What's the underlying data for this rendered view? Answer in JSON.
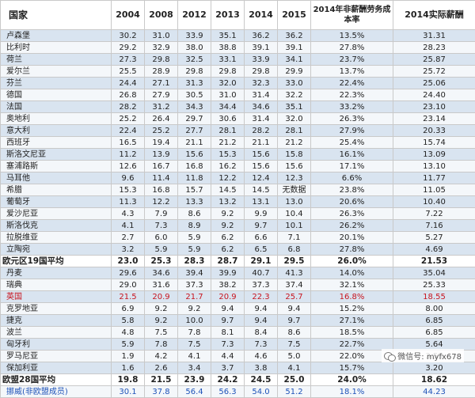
{
  "headers": {
    "country": "国家",
    "years": [
      "2004",
      "2008",
      "2012",
      "2013",
      "2014",
      "2015"
    ],
    "nonwage_cost_rate": "2014年非薪酬劳务成本率",
    "actual_wage": "2014实际薪酬"
  },
  "rows": [
    {
      "country": "卢森堡",
      "values": [
        "30.2",
        "31.0",
        "33.9",
        "35.1",
        "36.2",
        "36.2",
        "13.5%",
        "31.31"
      ]
    },
    {
      "country": "比利时",
      "values": [
        "29.2",
        "32.9",
        "38.0",
        "38.8",
        "39.1",
        "39.1",
        "27.8%",
        "28.23"
      ]
    },
    {
      "country": "荷兰",
      "values": [
        "27.3",
        "29.8",
        "32.5",
        "33.1",
        "33.9",
        "34.1",
        "23.7%",
        "25.87"
      ]
    },
    {
      "country": "爱尔兰",
      "values": [
        "25.5",
        "28.9",
        "29.8",
        "29.8",
        "29.8",
        "29.9",
        "13.7%",
        "25.72"
      ]
    },
    {
      "country": "芬兰",
      "values": [
        "24.4",
        "27.1",
        "31.3",
        "32.0",
        "32.3",
        "33.0",
        "22.4%",
        "25.06"
      ]
    },
    {
      "country": "德国",
      "values": [
        "26.8",
        "27.9",
        "30.5",
        "31.0",
        "31.4",
        "32.2",
        "22.3%",
        "24.40"
      ]
    },
    {
      "country": "法国",
      "values": [
        "28.2",
        "31.2",
        "34.3",
        "34.4",
        "34.6",
        "35.1",
        "33.2%",
        "23.10"
      ]
    },
    {
      "country": "奥地利",
      "values": [
        "25.2",
        "26.4",
        "29.7",
        "30.6",
        "31.4",
        "32.0",
        "26.3%",
        "23.14"
      ]
    },
    {
      "country": "意大利",
      "values": [
        "22.4",
        "25.2",
        "27.7",
        "28.1",
        "28.2",
        "28.1",
        "27.9%",
        "20.33"
      ]
    },
    {
      "country": "西班牙",
      "values": [
        "16.5",
        "19.4",
        "21.1",
        "21.2",
        "21.1",
        "21.2",
        "25.4%",
        "15.74"
      ]
    },
    {
      "country": "斯洛文尼亚",
      "values": [
        "11.2",
        "13.9",
        "15.6",
        "15.3",
        "15.6",
        "15.8",
        "16.1%",
        "13.09"
      ]
    },
    {
      "country": "塞浦路斯",
      "values": [
        "12.6",
        "16.7",
        "16.8",
        "16.2",
        "15.6",
        "15.6",
        "17.1%",
        "13.10"
      ]
    },
    {
      "country": "马耳他",
      "values": [
        "9.6",
        "11.4",
        "11.8",
        "12.2",
        "12.4",
        "12.3",
        "6.6%",
        "11.77"
      ]
    },
    {
      "country": "希腊",
      "values": [
        "15.3",
        "16.8",
        "15.7",
        "14.5",
        "14.5",
        "无数据",
        "23.8%",
        "11.05"
      ]
    },
    {
      "country": "葡萄牙",
      "values": [
        "11.3",
        "12.2",
        "13.3",
        "13.2",
        "13.1",
        "13.0",
        "20.6%",
        "10.40"
      ]
    },
    {
      "country": "爱沙尼亚",
      "values": [
        "4.3",
        "7.9",
        "8.6",
        "9.2",
        "9.9",
        "10.4",
        "26.3%",
        "7.22"
      ]
    },
    {
      "country": "斯洛伐克",
      "values": [
        "4.1",
        "7.3",
        "8.9",
        "9.2",
        "9.7",
        "10.1",
        "26.2%",
        "7.16"
      ]
    },
    {
      "country": "拉脱维亚",
      "values": [
        "2.7",
        "6.0",
        "5.9",
        "6.2",
        "6.6",
        "7.1",
        "20.1%",
        "5.27"
      ]
    },
    {
      "country": "立陶宛",
      "values": [
        "3.2",
        "5.9",
        "5.9",
        "6.2",
        "6.5",
        "6.8",
        "27.8%",
        "4.69"
      ]
    },
    {
      "country": "欧元区19国平均",
      "values": [
        "23.0",
        "25.3",
        "28.3",
        "28.7",
        "29.1",
        "29.5",
        "26.0%",
        "21.53"
      ],
      "style": "avg"
    },
    {
      "country": "丹麦",
      "values": [
        "29.6",
        "34.6",
        "39.4",
        "39.9",
        "40.7",
        "41.3",
        "14.0%",
        "35.04"
      ]
    },
    {
      "country": "瑞典",
      "values": [
        "29.0",
        "31.6",
        "37.3",
        "38.2",
        "37.3",
        "37.4",
        "32.1%",
        "25.33"
      ]
    },
    {
      "country": "英国",
      "values": [
        "21.5",
        "20.9",
        "21.7",
        "20.9",
        "22.3",
        "25.7",
        "16.8%",
        "18.55"
      ],
      "style": "red"
    },
    {
      "country": "克罗地亚",
      "values": [
        "6.9",
        "9.2",
        "9.2",
        "9.4",
        "9.4",
        "9.4",
        "15.2%",
        "8.00"
      ]
    },
    {
      "country": "捷克",
      "values": [
        "5.8",
        "9.2",
        "10.0",
        "9.7",
        "9.4",
        "9.7",
        "27.1%",
        "6.85"
      ]
    },
    {
      "country": "波兰",
      "values": [
        "4.8",
        "7.5",
        "7.8",
        "8.1",
        "8.4",
        "8.6",
        "18.5%",
        "6.85"
      ]
    },
    {
      "country": "匈牙利",
      "values": [
        "5.9",
        "7.8",
        "7.5",
        "7.3",
        "7.3",
        "7.5",
        "22.7%",
        "5.64"
      ]
    },
    {
      "country": "罗马尼亚",
      "values": [
        "1.9",
        "4.2",
        "4.1",
        "4.4",
        "4.6",
        "5.0",
        "22.0%",
        "3.59"
      ]
    },
    {
      "country": "保加利亚",
      "values": [
        "1.6",
        "2.6",
        "3.4",
        "3.7",
        "3.8",
        "4.1",
        "15.7%",
        "3.20"
      ]
    },
    {
      "country": "欧盟28国平均",
      "values": [
        "19.8",
        "21.5",
        "23.9",
        "24.2",
        "24.5",
        "25.0",
        "24.0%",
        "18.62"
      ],
      "style": "avg"
    },
    {
      "country": "挪威(非欧盟成员)",
      "values": [
        "30.1",
        "37.8",
        "56.4",
        "56.3",
        "54.0",
        "51.2",
        "18.1%",
        "44.23"
      ],
      "style": "blue"
    }
  ],
  "watermark": {
    "text": "微信号:  myfx678",
    "icon": "wechat-icon"
  },
  "colors": {
    "odd_row": "#d9e4f0",
    "even_row": "#f4f7fa",
    "red_text": "#c8141e",
    "blue_text": "#1d52b8"
  }
}
